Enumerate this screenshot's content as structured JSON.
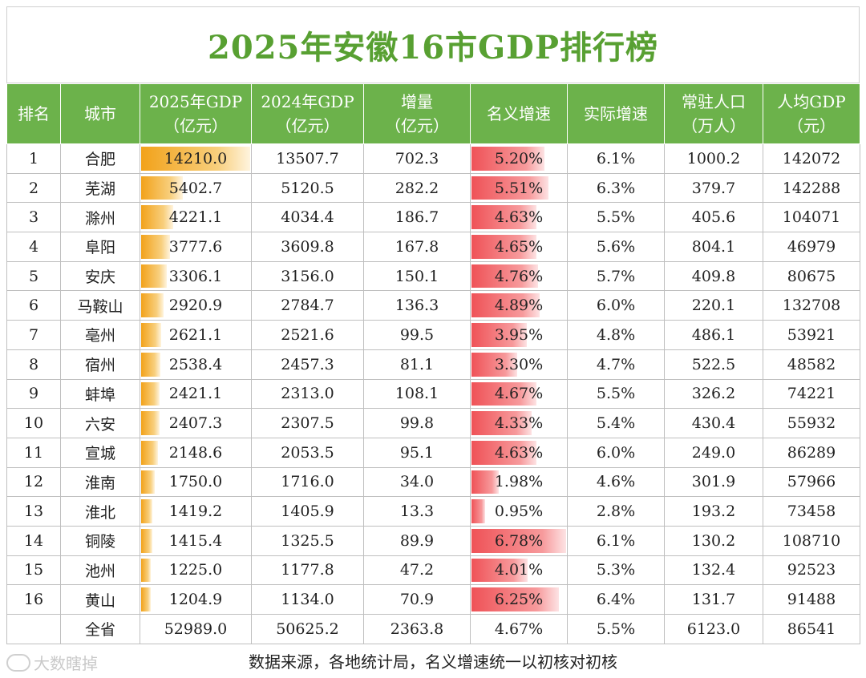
{
  "title": "2025年安徽16市GDP排行榜",
  "headers": [
    {
      "line1": "排名",
      "line2": ""
    },
    {
      "line1": "城市",
      "line2": ""
    },
    {
      "line1": "2025年GDP",
      "line2": "（亿元）"
    },
    {
      "line1": "2024年GDP",
      "line2": "（亿元）"
    },
    {
      "line1": "增量",
      "line2": "（亿元）"
    },
    {
      "line1": "名义增速",
      "line2": ""
    },
    {
      "line1": "实际增速",
      "line2": ""
    },
    {
      "line1": "常驻人口",
      "line2": "（万人）"
    },
    {
      "line1": "人均GDP",
      "line2": "（元）"
    }
  ],
  "rows": [
    {
      "rank": "1",
      "city": "合肥",
      "gdp2025": "14210.0",
      "gdp2024": "13507.7",
      "increase": "702.3",
      "nominal": "5.20%",
      "real": "6.1%",
      "population": "1000.2",
      "per_capita": "142072"
    },
    {
      "rank": "2",
      "city": "芜湖",
      "gdp2025": "5402.7",
      "gdp2024": "5120.5",
      "increase": "282.2",
      "nominal": "5.51%",
      "real": "6.3%",
      "population": "379.7",
      "per_capita": "142288"
    },
    {
      "rank": "3",
      "city": "滁州",
      "gdp2025": "4221.1",
      "gdp2024": "4034.4",
      "increase": "186.7",
      "nominal": "4.63%",
      "real": "5.5%",
      "population": "405.6",
      "per_capita": "104071"
    },
    {
      "rank": "4",
      "city": "阜阳",
      "gdp2025": "3777.6",
      "gdp2024": "3609.8",
      "increase": "167.8",
      "nominal": "4.65%",
      "real": "5.6%",
      "population": "804.1",
      "per_capita": "46979"
    },
    {
      "rank": "5",
      "city": "安庆",
      "gdp2025": "3306.1",
      "gdp2024": "3156.0",
      "increase": "150.1",
      "nominal": "4.76%",
      "real": "5.7%",
      "population": "409.8",
      "per_capita": "80675"
    },
    {
      "rank": "6",
      "city": "马鞍山",
      "gdp2025": "2920.9",
      "gdp2024": "2784.7",
      "increase": "136.3",
      "nominal": "4.89%",
      "real": "6.0%",
      "population": "220.1",
      "per_capita": "132708"
    },
    {
      "rank": "7",
      "city": "亳州",
      "gdp2025": "2621.1",
      "gdp2024": "2521.6",
      "increase": "99.5",
      "nominal": "3.95%",
      "real": "4.8%",
      "population": "486.1",
      "per_capita": "53921"
    },
    {
      "rank": "8",
      "city": "宿州",
      "gdp2025": "2538.4",
      "gdp2024": "2457.3",
      "increase": "81.1",
      "nominal": "3.30%",
      "real": "4.7%",
      "population": "522.5",
      "per_capita": "48582"
    },
    {
      "rank": "9",
      "city": "蚌埠",
      "gdp2025": "2421.1",
      "gdp2024": "2313.0",
      "increase": "108.1",
      "nominal": "4.67%",
      "real": "5.5%",
      "population": "326.2",
      "per_capita": "74221"
    },
    {
      "rank": "10",
      "city": "六安",
      "gdp2025": "2407.3",
      "gdp2024": "2307.5",
      "increase": "99.8",
      "nominal": "4.33%",
      "real": "5.4%",
      "population": "430.4",
      "per_capita": "55932"
    },
    {
      "rank": "11",
      "city": "宣城",
      "gdp2025": "2148.6",
      "gdp2024": "2053.5",
      "increase": "95.1",
      "nominal": "4.63%",
      "real": "6.0%",
      "population": "249.0",
      "per_capita": "86289"
    },
    {
      "rank": "12",
      "city": "淮南",
      "gdp2025": "1750.0",
      "gdp2024": "1716.0",
      "increase": "34.0",
      "nominal": "1.98%",
      "real": "4.6%",
      "population": "301.9",
      "per_capita": "57966"
    },
    {
      "rank": "13",
      "city": "淮北",
      "gdp2025": "1419.2",
      "gdp2024": "1405.9",
      "increase": "13.3",
      "nominal": "0.95%",
      "real": "2.8%",
      "population": "193.2",
      "per_capita": "73458"
    },
    {
      "rank": "14",
      "city": "铜陵",
      "gdp2025": "1415.4",
      "gdp2024": "1325.5",
      "increase": "89.9",
      "nominal": "6.78%",
      "real": "6.1%",
      "population": "130.2",
      "per_capita": "108710"
    },
    {
      "rank": "15",
      "city": "池州",
      "gdp2025": "1225.0",
      "gdp2024": "1177.8",
      "increase": "47.2",
      "nominal": "4.01%",
      "real": "5.3%",
      "population": "132.4",
      "per_capita": "92523"
    },
    {
      "rank": "16",
      "city": "黄山",
      "gdp2025": "1204.9",
      "gdp2024": "1134.0",
      "increase": "70.9",
      "nominal": "6.25%",
      "real": "6.4%",
      "population": "131.7",
      "per_capita": "91488"
    }
  ],
  "total": {
    "rank": "",
    "city": "全省",
    "gdp2025": "52989.0",
    "gdp2024": "50625.2",
    "increase": "2363.8",
    "nominal": "4.67%",
    "real": "5.5%",
    "population": "6123.0",
    "per_capita": "86541"
  },
  "footer": "数据来源，各地统计局，名义增速统一以初核对初核",
  "watermark": "大数瞎掉",
  "colors": {
    "header_bg": "#6cb24b",
    "title": "#58a032",
    "gdp_bar": "#f2a21a",
    "rate_bar": "#ef5257"
  }
}
